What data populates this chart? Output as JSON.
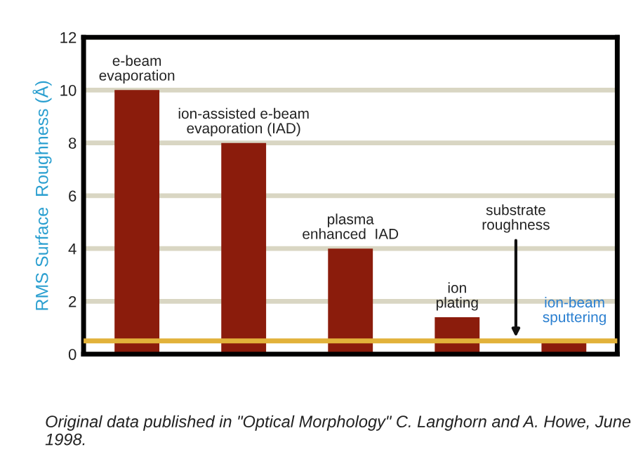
{
  "chart_data": {
    "type": "bar",
    "ylabel": "RMS Surface  Roughness (Å)",
    "categories": [
      "e-beam\nevaporation",
      "ion-assisted e-beam\nevaporation (IAD)",
      "plasma\nenhanced  IAD",
      "ion\nplating",
      "ion-beam\nsputtering"
    ],
    "series": [
      {
        "color": "#8b1c0c",
        "values": [
          10,
          8,
          4,
          1.4,
          0.5
        ]
      }
    ],
    "ylim": [
      0,
      12
    ],
    "yticks": [
      0,
      2,
      4,
      6,
      8,
      10,
      12
    ],
    "grid": "y",
    "ref_lines": [
      {
        "axis": "y",
        "value": 0.5,
        "label": "substrate\nroughness",
        "color": "#e2b23a"
      }
    ],
    "annotations": [
      "Original data published in \"Optical Morphology\" C. Langhorn and A. Howe, June 1998."
    ]
  }
}
